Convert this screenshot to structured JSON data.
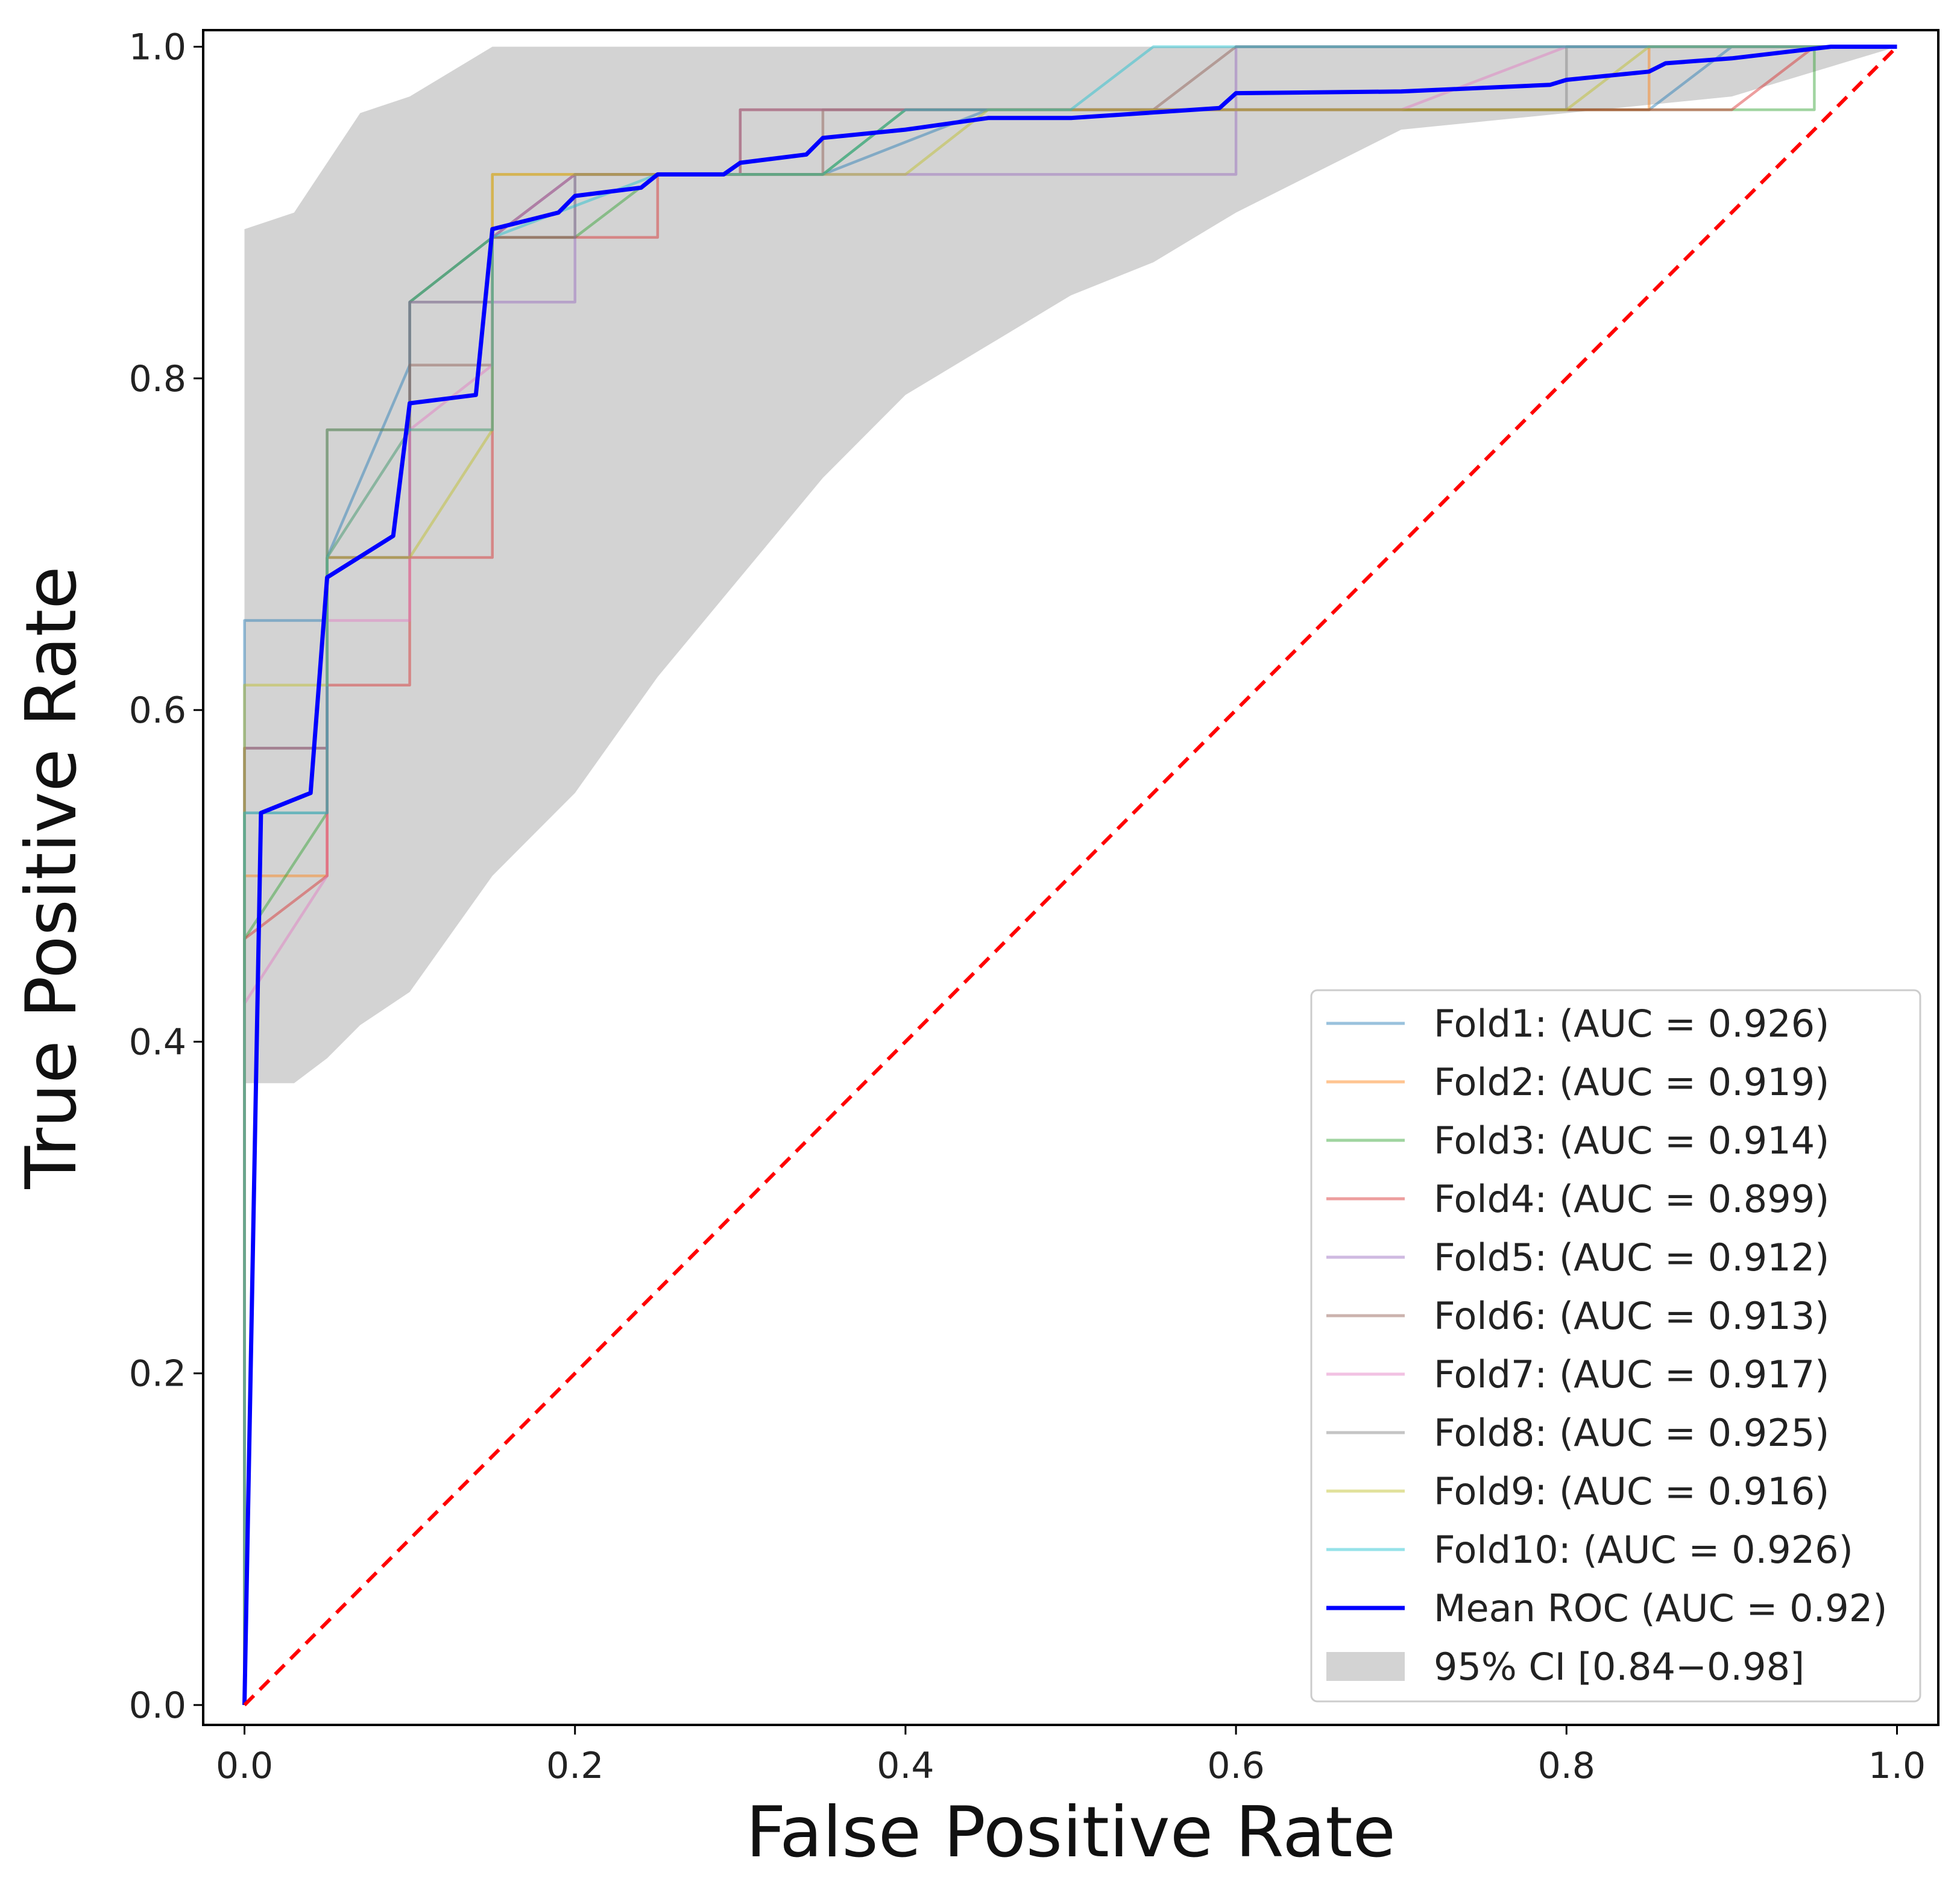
{
  "chart_data": {
    "type": "line",
    "title": "",
    "xlabel": "False Positive Rate",
    "ylabel": "True Positive Rate",
    "xlim": [
      -0.025,
      1.025
    ],
    "ylim": [
      -0.012,
      1.01
    ],
    "xticks": [
      0.0,
      0.2,
      0.4,
      0.6,
      0.8,
      1.0
    ],
    "yticks": [
      0.0,
      0.2,
      0.4,
      0.6,
      0.8,
      1.0
    ],
    "xtick_labels": [
      "0.0",
      "0.2",
      "0.4",
      "0.6",
      "0.8",
      "1.0"
    ],
    "ytick_labels": [
      "0.0",
      "0.2",
      "0.4",
      "0.6",
      "0.8",
      "1.0"
    ],
    "legend_position": "lower-right",
    "series": [
      {
        "name": "Fold1",
        "label": "Fold1: (AUC = 0.926)",
        "color": "#1f77b4",
        "alpha": 0.45,
        "points": [
          [
            0,
            0
          ],
          [
            0,
            0.654
          ],
          [
            0.05,
            0.654
          ],
          [
            0.05,
            0.692
          ],
          [
            0.1,
            0.808
          ],
          [
            0.1,
            0.846
          ],
          [
            0.15,
            0.885
          ],
          [
            0.2,
            0.923
          ],
          [
            0.35,
            0.923
          ],
          [
            0.45,
            0.962
          ],
          [
            0.85,
            0.962
          ],
          [
            0.9,
            1.0
          ],
          [
            1.0,
            1.0
          ]
        ]
      },
      {
        "name": "Fold2",
        "label": "Fold2: (AUC = 0.919)",
        "color": "#ff7f0e",
        "alpha": 0.45,
        "points": [
          [
            0,
            0
          ],
          [
            0,
            0.5
          ],
          [
            0.05,
            0.5
          ],
          [
            0.05,
            0.692
          ],
          [
            0.1,
            0.769
          ],
          [
            0.15,
            0.769
          ],
          [
            0.15,
            0.923
          ],
          [
            0.35,
            0.923
          ],
          [
            0.4,
            0.962
          ],
          [
            0.85,
            0.962
          ],
          [
            0.85,
            1.0
          ],
          [
            1.0,
            1.0
          ]
        ]
      },
      {
        "name": "Fold3",
        "label": "Fold3: (AUC = 0.914)",
        "color": "#2ca02c",
        "alpha": 0.45,
        "points": [
          [
            0,
            0
          ],
          [
            0,
            0.462
          ],
          [
            0.05,
            0.538
          ],
          [
            0.05,
            0.769
          ],
          [
            0.1,
            0.769
          ],
          [
            0.1,
            0.846
          ],
          [
            0.15,
            0.885
          ],
          [
            0.2,
            0.885
          ],
          [
            0.25,
            0.923
          ],
          [
            0.35,
            0.923
          ],
          [
            0.4,
            0.962
          ],
          [
            0.95,
            0.962
          ],
          [
            0.95,
            1.0
          ],
          [
            1.0,
            1.0
          ]
        ]
      },
      {
        "name": "Fold4",
        "label": "Fold4: (AUC = 0.899)",
        "color": "#d62728",
        "alpha": 0.45,
        "points": [
          [
            0,
            0
          ],
          [
            0,
            0.462
          ],
          [
            0.05,
            0.5
          ],
          [
            0.05,
            0.615
          ],
          [
            0.1,
            0.615
          ],
          [
            0.1,
            0.692
          ],
          [
            0.15,
            0.692
          ],
          [
            0.15,
            0.885
          ],
          [
            0.25,
            0.885
          ],
          [
            0.25,
            0.923
          ],
          [
            0.3,
            0.923
          ],
          [
            0.3,
            0.962
          ],
          [
            0.9,
            0.962
          ],
          [
            0.95,
            1.0
          ],
          [
            1.0,
            1.0
          ]
        ]
      },
      {
        "name": "Fold5",
        "label": "Fold5: (AUC = 0.912)",
        "color": "#9467bd",
        "alpha": 0.45,
        "points": [
          [
            0,
            0
          ],
          [
            0,
            0.577
          ],
          [
            0.05,
            0.577
          ],
          [
            0.05,
            0.692
          ],
          [
            0.1,
            0.692
          ],
          [
            0.1,
            0.846
          ],
          [
            0.2,
            0.846
          ],
          [
            0.2,
            0.923
          ],
          [
            0.6,
            0.923
          ],
          [
            0.6,
            1.0
          ],
          [
            1.0,
            1.0
          ]
        ]
      },
      {
        "name": "Fold6",
        "label": "Fold6: (AUC = 0.913)",
        "color": "#8c564b",
        "alpha": 0.45,
        "points": [
          [
            0,
            0
          ],
          [
            0,
            0.577
          ],
          [
            0.05,
            0.577
          ],
          [
            0.05,
            0.692
          ],
          [
            0.1,
            0.692
          ],
          [
            0.1,
            0.808
          ],
          [
            0.15,
            0.808
          ],
          [
            0.15,
            0.885
          ],
          [
            0.2,
            0.923
          ],
          [
            0.35,
            0.923
          ],
          [
            0.35,
            0.962
          ],
          [
            0.55,
            0.962
          ],
          [
            0.6,
            1.0
          ],
          [
            1.0,
            1.0
          ]
        ]
      },
      {
        "name": "Fold7",
        "label": "Fold7: (AUC = 0.917)",
        "color": "#e377c2",
        "alpha": 0.45,
        "points": [
          [
            0,
            0
          ],
          [
            0,
            0.423
          ],
          [
            0.05,
            0.5
          ],
          [
            0.05,
            0.654
          ],
          [
            0.1,
            0.654
          ],
          [
            0.1,
            0.769
          ],
          [
            0.15,
            0.808
          ],
          [
            0.15,
            0.885
          ],
          [
            0.2,
            0.923
          ],
          [
            0.3,
            0.923
          ],
          [
            0.3,
            0.962
          ],
          [
            0.7,
            0.962
          ],
          [
            0.8,
            1.0
          ],
          [
            1.0,
            1.0
          ]
        ]
      },
      {
        "name": "Fold8",
        "label": "Fold8: (AUC = 0.925)",
        "color": "#7f7f7f",
        "alpha": 0.45,
        "points": [
          [
            0,
            0
          ],
          [
            0,
            0.538
          ],
          [
            0.05,
            0.538
          ],
          [
            0.05,
            0.769
          ],
          [
            0.1,
            0.769
          ],
          [
            0.1,
            0.846
          ],
          [
            0.15,
            0.846
          ],
          [
            0.15,
            0.885
          ],
          [
            0.2,
            0.885
          ],
          [
            0.2,
            0.923
          ],
          [
            0.3,
            0.923
          ],
          [
            0.3,
            0.962
          ],
          [
            0.8,
            0.962
          ],
          [
            0.8,
            1.0
          ],
          [
            1.0,
            1.0
          ]
        ]
      },
      {
        "name": "Fold9",
        "label": "Fold9: (AUC = 0.916)",
        "color": "#bcbd22",
        "alpha": 0.45,
        "points": [
          [
            0,
            0
          ],
          [
            0,
            0.615
          ],
          [
            0.05,
            0.615
          ],
          [
            0.05,
            0.692
          ],
          [
            0.1,
            0.692
          ],
          [
            0.15,
            0.769
          ],
          [
            0.15,
            0.923
          ],
          [
            0.4,
            0.923
          ],
          [
            0.45,
            0.962
          ],
          [
            0.8,
            0.962
          ],
          [
            0.85,
            1.0
          ],
          [
            1.0,
            1.0
          ]
        ]
      },
      {
        "name": "Fold10",
        "label": "Fold10: (AUC = 0.926)",
        "color": "#17becf",
        "alpha": 0.45,
        "points": [
          [
            0,
            0
          ],
          [
            0,
            0.538
          ],
          [
            0.05,
            0.538
          ],
          [
            0.05,
            0.692
          ],
          [
            0.1,
            0.769
          ],
          [
            0.15,
            0.769
          ],
          [
            0.15,
            0.885
          ],
          [
            0.25,
            0.923
          ],
          [
            0.35,
            0.923
          ],
          [
            0.4,
            0.962
          ],
          [
            0.5,
            0.962
          ],
          [
            0.55,
            1.0
          ],
          [
            1.0,
            1.0
          ]
        ]
      },
      {
        "name": "Mean ROC",
        "label": "Mean ROC (AUC = 0.92)",
        "color": "#0000ff",
        "alpha": 1.0,
        "points": [
          [
            0,
            0
          ],
          [
            0.01,
            0.538
          ],
          [
            0.04,
            0.55
          ],
          [
            0.05,
            0.68
          ],
          [
            0.09,
            0.705
          ],
          [
            0.1,
            0.785
          ],
          [
            0.14,
            0.79
          ],
          [
            0.15,
            0.89
          ],
          [
            0.19,
            0.9
          ],
          [
            0.2,
            0.91
          ],
          [
            0.24,
            0.915
          ],
          [
            0.25,
            0.923
          ],
          [
            0.29,
            0.923
          ],
          [
            0.3,
            0.93
          ],
          [
            0.34,
            0.935
          ],
          [
            0.35,
            0.945
          ],
          [
            0.4,
            0.95
          ],
          [
            0.45,
            0.957
          ],
          [
            0.5,
            0.957
          ],
          [
            0.59,
            0.963
          ],
          [
            0.6,
            0.972
          ],
          [
            0.7,
            0.973
          ],
          [
            0.79,
            0.977
          ],
          [
            0.8,
            0.98
          ],
          [
            0.85,
            0.985
          ],
          [
            0.86,
            0.99
          ],
          [
            0.9,
            0.993
          ],
          [
            0.96,
            1.0
          ],
          [
            1.0,
            1.0
          ]
        ]
      }
    ],
    "reference_line": {
      "points": [
        [
          0,
          0
        ],
        [
          1,
          1
        ]
      ],
      "color": "#ff0000",
      "style": "dashed"
    },
    "ci_band": {
      "label": "95% CI [0.84−0.98]",
      "color": "#d3d3d3",
      "x": [
        0,
        0.03,
        0.05,
        0.07,
        0.1,
        0.15,
        0.2,
        0.25,
        0.3,
        0.35,
        0.4,
        0.45,
        0.5,
        0.55,
        0.6,
        0.7,
        0.8,
        0.9,
        1.0
      ],
      "upper": [
        0.89,
        0.9,
        0.93,
        0.96,
        0.97,
        1.0,
        1.0,
        1.0,
        1.0,
        1.0,
        1.0,
        1.0,
        1.0,
        1.0,
        1.0,
        1.0,
        1.0,
        1.0,
        1.0
      ],
      "lower": [
        0.375,
        0.375,
        0.39,
        0.41,
        0.43,
        0.5,
        0.55,
        0.62,
        0.68,
        0.74,
        0.79,
        0.82,
        0.85,
        0.87,
        0.9,
        0.95,
        0.96,
        0.97,
        1.0
      ]
    }
  }
}
